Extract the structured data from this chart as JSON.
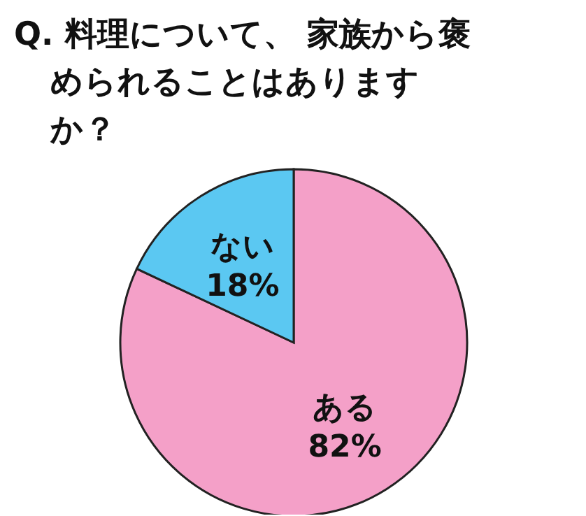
{
  "chart_data": {
    "type": "pie",
    "title": "Q. 料理について、 家族から褒められることはありますか？",
    "categories": [
      "ある",
      "ない"
    ],
    "values": [
      82,
      18
    ],
    "colors": [
      "#f4a0c8",
      "#5bc8f2"
    ],
    "value_labels": [
      "82%",
      "18%"
    ]
  }
}
